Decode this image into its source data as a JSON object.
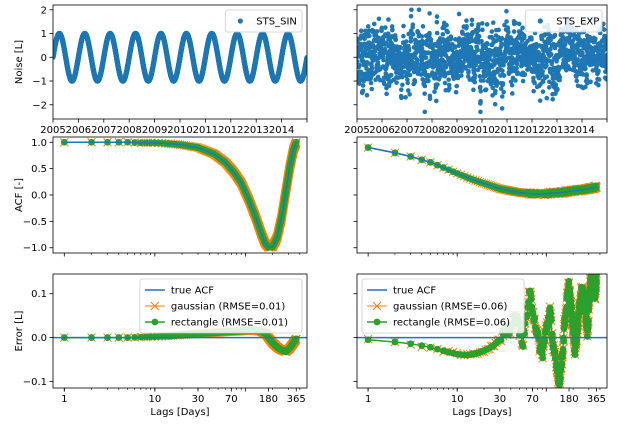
{
  "chart_data": [
    {
      "type": "scatter",
      "panel": "noise-sin",
      "ylabel": "Noise [L]",
      "xlim": [
        2005,
        2015
      ],
      "ylim": [
        -2.6,
        2.2
      ],
      "xticks": [
        "2005",
        "2006",
        "2007",
        "2008",
        "2009",
        "2010",
        "2011",
        "2012",
        "2013",
        "2014"
      ],
      "yticks": [
        "−2",
        "−1",
        "0",
        "1",
        "2"
      ],
      "legend": {
        "position": "top-right",
        "entries": [
          {
            "label": "STS_SIN",
            "marker": "dot"
          }
        ]
      },
      "series": [
        {
          "name": "STS_SIN",
          "color": "#1f77b4",
          "kind": "sine",
          "amplitude": 1.0,
          "period_years": 1.0,
          "start_year": 2005,
          "end_year": 2015
        }
      ]
    },
    {
      "type": "scatter",
      "panel": "noise-exp",
      "xlim": [
        2005,
        2015
      ],
      "ylim": [
        -2.6,
        2.2
      ],
      "xticks": [
        "2005",
        "2006",
        "2007",
        "2008",
        "2009",
        "2010",
        "2011",
        "2012",
        "2013",
        "2014"
      ],
      "legend": {
        "position": "top-right",
        "entries": [
          {
            "label": "STS_EXP",
            "marker": "dot"
          }
        ]
      },
      "series": [
        {
          "name": "STS_EXP",
          "color": "#1f77b4",
          "kind": "noise",
          "std": 0.65,
          "min": -2.3,
          "max": 2.0,
          "start_year": 2005,
          "end_year": 2015
        }
      ]
    },
    {
      "type": "line",
      "panel": "acf-sin",
      "ylabel": "ACF [-]",
      "xscale": "log",
      "xlim": [
        0.75,
        480
      ],
      "ylim": [
        -1.1,
        1.1
      ],
      "yticks": [
        "−1.0",
        "−0.5",
        "0.0",
        "0.5",
        "1.0"
      ],
      "series": [
        {
          "name": "true ACF",
          "color": "#1f77b4",
          "lags": [
            1,
            2,
            3,
            5,
            7,
            10,
            15,
            20,
            30,
            45,
            60,
            75,
            90,
            110,
            130,
            150,
            165,
            180,
            200,
            225,
            250,
            280,
            310,
            340,
            365
          ],
          "values": [
            1.0,
            1.0,
            1.0,
            1.0,
            0.99,
            0.99,
            0.97,
            0.95,
            0.9,
            0.78,
            0.62,
            0.43,
            0.23,
            -0.1,
            -0.42,
            -0.73,
            -0.91,
            -0.99,
            -0.98,
            -0.8,
            -0.45,
            0.07,
            0.53,
            0.86,
            1.0
          ]
        },
        {
          "name": "gaussian (RMSE=0.01)",
          "color": "#ff7f0e",
          "marker": "x"
        },
        {
          "name": "rectangle (RMSE=0.01)",
          "color": "#2ca02c",
          "marker": "o"
        }
      ]
    },
    {
      "type": "line",
      "panel": "acf-exp",
      "xscale": "log",
      "xlim": [
        0.75,
        480
      ],
      "ylim": [
        -1.1,
        1.1
      ],
      "series": [
        {
          "name": "true ACF",
          "color": "#1f77b4",
          "lags": [
            1,
            2,
            3,
            5,
            7,
            10,
            15,
            20,
            30,
            45,
            60,
            75,
            90,
            110,
            130,
            150,
            180,
            200,
            250,
            300,
            365
          ],
          "values": [
            0.9,
            0.8,
            0.73,
            0.62,
            0.52,
            0.41,
            0.29,
            0.22,
            0.12,
            0.06,
            0.03,
            0.02,
            0.02,
            0.03,
            0.04,
            0.05,
            0.07,
            0.08,
            0.1,
            0.12,
            0.15
          ]
        },
        {
          "name": "gaussian (RMSE=0.06)",
          "color": "#ff7f0e",
          "marker": "x"
        },
        {
          "name": "rectangle (RMSE=0.06)",
          "color": "#2ca02c",
          "marker": "o"
        }
      ]
    },
    {
      "type": "line",
      "panel": "err-sin",
      "ylabel": "Error [L]",
      "xlabel": "Lags [Days]",
      "xscale": "log",
      "xlim": [
        0.75,
        480
      ],
      "ylim": [
        -0.115,
        0.145
      ],
      "xticks": [
        "1",
        "10",
        "30",
        "70",
        "180",
        "365"
      ],
      "xtick_values": [
        1,
        10,
        30,
        70,
        180,
        365
      ],
      "yticks": [
        "−0.1",
        "0.0",
        "0.1"
      ],
      "legend": {
        "position": "top-right",
        "entries": [
          {
            "label": "true ACF",
            "marker": "line"
          },
          {
            "label": "gaussian (RMSE=0.01)",
            "marker": "x"
          },
          {
            "label": "rectangle (RMSE=0.01)",
            "marker": "o"
          }
        ]
      },
      "series": [
        {
          "name": "true ACF",
          "color": "#1f77b4",
          "lags": [
            1,
            365
          ],
          "values": [
            0,
            0
          ]
        },
        {
          "name": "gaussian (RMSE=0.01)",
          "color": "#ff7f0e",
          "marker": "x"
        },
        {
          "name": "rectangle (RMSE=0.01)",
          "color": "#2ca02c",
          "marker": "o",
          "lags": [
            1,
            2,
            3,
            5,
            7,
            10,
            15,
            20,
            30,
            45,
            60,
            75,
            90,
            110,
            130,
            150,
            170,
            180,
            200,
            225,
            250,
            280,
            310,
            340,
            365
          ],
          "values": [
            0.0,
            0.0,
            0.0,
            0.0,
            0.001,
            0.002,
            0.004,
            0.006,
            0.009,
            0.011,
            0.013,
            0.014,
            0.015,
            0.016,
            0.016,
            0.014,
            0.008,
            0.0,
            -0.012,
            -0.022,
            -0.028,
            -0.032,
            -0.024,
            -0.012,
            -0.003
          ]
        }
      ]
    },
    {
      "type": "line",
      "panel": "err-exp",
      "xlabel": "Lags [Days]",
      "xscale": "log",
      "xlim": [
        0.75,
        480
      ],
      "ylim": [
        -0.115,
        0.145
      ],
      "xticks": [
        "1",
        "10",
        "30",
        "70",
        "180",
        "365"
      ],
      "xtick_values": [
        1,
        10,
        30,
        70,
        180,
        365
      ],
      "legend": {
        "position": "top-left",
        "entries": [
          {
            "label": "true ACF",
            "marker": "line"
          },
          {
            "label": "gaussian (RMSE=0.06)",
            "marker": "x"
          },
          {
            "label": "rectangle (RMSE=0.06)",
            "marker": "o"
          }
        ]
      },
      "series": [
        {
          "name": "true ACF",
          "color": "#1f77b4",
          "lags": [
            1,
            365
          ],
          "values": [
            0,
            0
          ]
        },
        {
          "name": "gaussian (RMSE=0.06)",
          "color": "#ff7f0e",
          "marker": "x"
        },
        {
          "name": "rectangle (RMSE=0.06)",
          "color": "#2ca02c",
          "marker": "o",
          "lags": [
            1,
            2,
            3,
            5,
            7,
            10,
            13,
            17,
            20,
            25,
            30,
            35,
            40,
            45,
            50,
            55,
            60,
            65,
            70,
            80,
            90,
            100,
            110,
            120,
            130,
            140,
            150,
            160,
            170,
            180,
            195,
            210,
            230,
            250,
            270,
            290,
            310,
            330,
            350,
            365
          ],
          "values": [
            -0.005,
            -0.01,
            -0.014,
            -0.022,
            -0.03,
            -0.038,
            -0.04,
            -0.035,
            -0.03,
            -0.02,
            -0.005,
            0.01,
            0.03,
            0.045,
            0.02,
            -0.01,
            0.05,
            0.1,
            0.07,
            0.0,
            -0.04,
            0.02,
            0.06,
            -0.02,
            -0.07,
            -0.1,
            -0.05,
            0.03,
            0.08,
            0.12,
            0.04,
            -0.03,
            0.05,
            0.11,
            0.08,
            0.01,
            0.12,
            0.14,
            0.1,
            0.13
          ]
        }
      ]
    }
  ]
}
